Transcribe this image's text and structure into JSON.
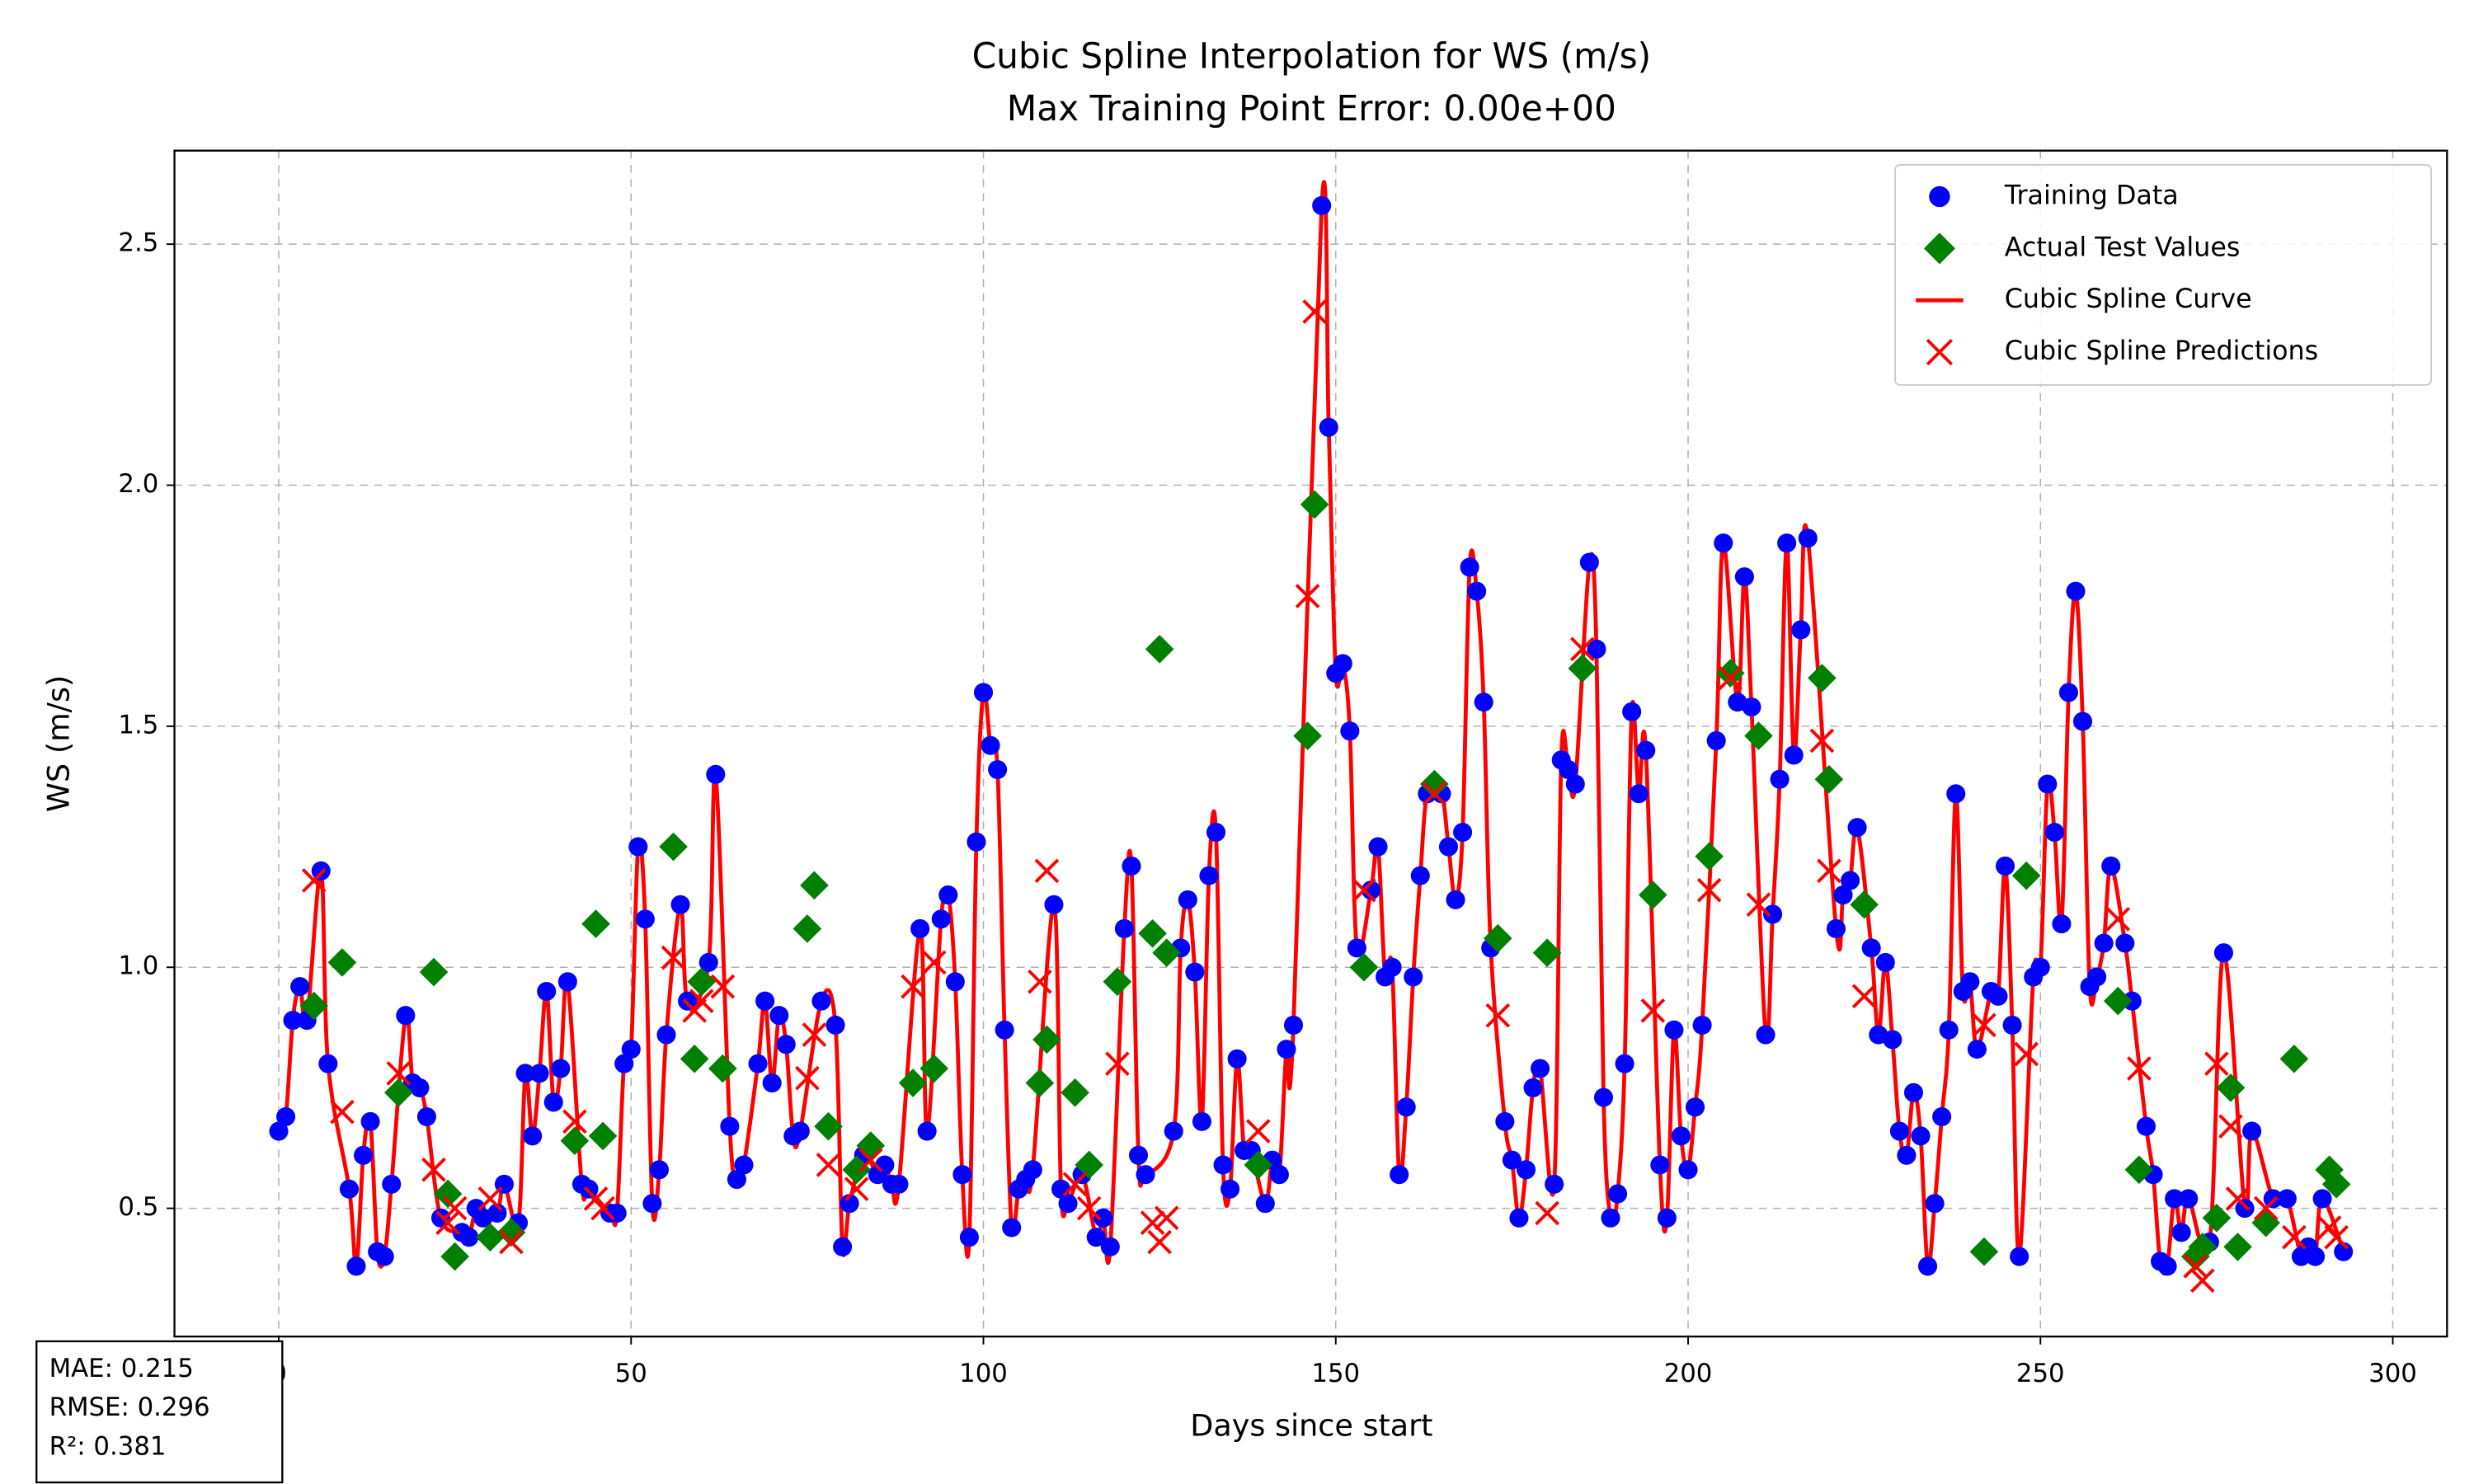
{
  "chart_data": {
    "type": "scatter",
    "title": [
      "Cubic Spline Interpolation for WS (m/s)",
      "Max Training Point Error: 0.00e+00"
    ],
    "xlabel": "Days since start",
    "ylabel": "WS (m/s)",
    "xlim": [
      -14.8,
      307.7
    ],
    "ylim": [
      0.234,
      2.694
    ],
    "xticks": [
      0,
      50,
      100,
      150,
      200,
      250,
      300
    ],
    "yticks": [
      0.5,
      {
        "value": 1.0,
        "label": "1.0"
      },
      1.5,
      {
        "value": 2.0,
        "label": "2.0"
      },
      2.5
    ],
    "grid": true,
    "legend": "upper right",
    "stats": [
      "MAE: 0.215",
      "RMSE: 0.296",
      "R²: 0.381"
    ],
    "series": [
      {
        "name": "Training Data",
        "color": "#0000ff",
        "marker": "circle",
        "x": [
          0,
          1,
          2,
          3,
          4,
          6,
          7,
          10,
          11,
          12,
          13,
          14,
          15,
          16,
          18,
          19,
          20,
          21,
          23,
          26,
          27,
          28,
          29,
          31,
          32,
          34,
          35,
          36,
          37,
          38,
          39,
          40,
          41,
          43,
          44,
          47,
          48,
          49,
          50,
          51,
          52,
          53,
          54,
          55,
          57,
          58,
          61,
          62,
          64,
          65,
          66,
          68,
          69,
          70,
          71,
          72,
          73,
          74,
          77,
          79,
          80,
          81,
          83,
          85,
          86,
          87,
          88,
          91,
          92,
          94,
          95,
          96,
          97,
          98,
          99,
          100,
          101,
          102,
          103,
          104,
          105,
          106,
          107,
          110,
          111,
          112,
          114,
          116,
          117,
          118,
          120,
          121,
          122,
          123,
          127,
          128,
          129,
          130,
          131,
          132,
          133,
          134,
          135,
          136,
          137,
          138,
          140,
          141,
          142,
          143,
          144,
          148,
          149,
          150,
          151,
          152,
          153,
          155,
          156,
          157,
          158,
          159,
          160,
          161,
          162,
          163,
          165,
          166,
          167,
          168,
          169,
          170,
          171,
          172,
          174,
          175,
          176,
          177,
          178,
          179,
          181,
          182,
          183,
          184,
          186,
          187,
          188,
          189,
          190,
          191,
          192,
          193,
          194,
          196,
          197,
          198,
          199,
          200,
          201,
          202,
          204,
          205,
          207,
          208,
          209,
          211,
          212,
          213,
          214,
          215,
          216,
          217,
          221,
          222,
          223,
          224,
          226,
          227,
          228,
          229,
          230,
          231,
          232,
          233,
          234,
          235,
          236,
          237,
          238,
          239,
          240,
          241,
          243,
          244,
          245,
          246,
          247,
          249,
          250,
          251,
          252,
          253,
          254,
          255,
          256,
          257,
          258,
          259,
          260,
          262,
          263,
          265,
          266,
          267,
          268,
          269,
          270,
          271,
          274,
          276,
          279,
          280,
          283,
          285,
          287,
          288,
          289,
          290,
          293
        ],
        "values": [
          0.66,
          0.69,
          0.89,
          0.96,
          0.89,
          1.2,
          0.8,
          0.54,
          0.38,
          0.61,
          0.68,
          0.41,
          0.4,
          0.55,
          0.9,
          0.76,
          0.75,
          0.69,
          0.48,
          0.45,
          0.44,
          0.5,
          0.48,
          0.49,
          0.55,
          0.47,
          0.78,
          0.65,
          0.78,
          0.95,
          0.72,
          0.79,
          0.97,
          0.55,
          0.54,
          0.49,
          0.49,
          0.8,
          0.83,
          1.25,
          1.1,
          0.51,
          0.58,
          0.86,
          1.13,
          0.93,
          1.01,
          1.4,
          0.67,
          0.56,
          0.59,
          0.8,
          0.93,
          0.76,
          0.9,
          0.84,
          0.65,
          0.66,
          0.93,
          0.88,
          0.42,
          0.51,
          0.61,
          0.57,
          0.59,
          0.55,
          0.55,
          1.08,
          0.66,
          1.1,
          1.15,
          0.97,
          0.57,
          0.44,
          1.26,
          1.57,
          1.46,
          1.41,
          0.87,
          0.46,
          0.54,
          0.56,
          0.58,
          1.13,
          0.54,
          0.51,
          0.57,
          0.44,
          0.48,
          0.42,
          1.08,
          1.21,
          0.61,
          0.57,
          0.66,
          1.04,
          1.14,
          0.99,
          0.68,
          1.19,
          1.28,
          0.59,
          0.54,
          0.81,
          0.62,
          0.62,
          0.51,
          0.6,
          0.57,
          0.83,
          0.88,
          2.58,
          2.12,
          1.61,
          1.63,
          1.49,
          1.04,
          1.16,
          1.25,
          0.98,
          1.0,
          0.57,
          0.71,
          0.98,
          1.19,
          1.36,
          1.36,
          1.25,
          1.14,
          1.28,
          1.83,
          1.78,
          1.55,
          1.04,
          0.68,
          0.6,
          0.48,
          0.58,
          0.75,
          0.79,
          0.55,
          1.43,
          1.41,
          1.38,
          1.84,
          1.66,
          0.73,
          0.48,
          0.53,
          0.8,
          1.53,
          1.36,
          1.45,
          0.59,
          0.48,
          0.87,
          0.65,
          0.58,
          0.71,
          0.88,
          1.47,
          1.88,
          1.55,
          1.81,
          1.54,
          0.86,
          1.11,
          1.39,
          1.88,
          1.44,
          1.7,
          1.89,
          1.08,
          1.15,
          1.18,
          1.29,
          1.04,
          0.86,
          1.01,
          0.85,
          0.66,
          0.61,
          0.74,
          0.65,
          0.38,
          0.51,
          0.69,
          0.87,
          1.36,
          0.95,
          0.97,
          0.83,
          0.95,
          0.94,
          1.21,
          0.88,
          0.4,
          0.98,
          1.0,
          1.38,
          1.28,
          1.09,
          1.57,
          1.78,
          1.51,
          0.96,
          0.98,
          1.05,
          1.21,
          1.05,
          0.93,
          0.67,
          0.57,
          0.39,
          0.38,
          0.52,
          0.45,
          0.52,
          0.43,
          1.03,
          0.5,
          0.66,
          0.52,
          0.52,
          0.4,
          0.42,
          0.4,
          0.52,
          0.41
        ]
      },
      {
        "name": "Actual Test Values",
        "color": "#008000",
        "marker": "diamond",
        "x": [
          5,
          9,
          17,
          22,
          24,
          25,
          30,
          33,
          42,
          45,
          46,
          56,
          59,
          60,
          63,
          75,
          76,
          78,
          82,
          84,
          90,
          93,
          108,
          109,
          113,
          115,
          119,
          124,
          125,
          126,
          139,
          146,
          147,
          154,
          164,
          173,
          180,
          185,
          195,
          203,
          206,
          210,
          219,
          220,
          225,
          242,
          248,
          261,
          264,
          272,
          273,
          275,
          277,
          278,
          282,
          286,
          291,
          292
        ],
        "values": [
          0.92,
          1.01,
          0.74,
          0.99,
          0.53,
          0.4,
          0.44,
          0.45,
          0.64,
          1.09,
          0.65,
          1.25,
          0.81,
          0.97,
          0.79,
          1.08,
          1.17,
          0.67,
          0.58,
          0.63,
          0.76,
          0.79,
          0.76,
          0.85,
          0.74,
          0.59,
          0.97,
          1.07,
          1.66,
          1.03,
          0.59,
          1.48,
          1.96,
          1.0,
          1.38,
          1.06,
          1.03,
          1.62,
          1.15,
          1.23,
          1.61,
          1.48,
          1.6,
          1.39,
          1.13,
          0.41,
          1.19,
          0.93,
          0.58,
          0.4,
          0.42,
          0.48,
          0.75,
          0.42,
          0.47,
          0.81,
          0.58,
          0.55
        ]
      },
      {
        "name": "Cubic Spline Curve",
        "color": "#ff0000",
        "marker": "line",
        "through": 0
      },
      {
        "name": "Cubic Spline Predictions",
        "color": "#ff0000",
        "marker": "x",
        "x_of": 1,
        "values": [
          1.18,
          0.7,
          0.78,
          0.58,
          0.47,
          0.5,
          0.52,
          0.43,
          0.68,
          0.52,
          0.5,
          1.02,
          0.91,
          0.93,
          0.96,
          0.77,
          0.86,
          0.59,
          0.54,
          0.6,
          0.96,
          1.01,
          0.97,
          1.2,
          0.55,
          0.5,
          0.8,
          0.47,
          0.43,
          0.48,
          0.66,
          1.77,
          2.36,
          1.16,
          1.36,
          0.9,
          0.49,
          1.66,
          0.91,
          1.16,
          1.6,
          1.13,
          1.47,
          1.2,
          0.94,
          0.88,
          0.82,
          1.1,
          0.79,
          0.38,
          0.35,
          0.8,
          0.67,
          0.52,
          0.5,
          0.44,
          0.46,
          0.44
        ]
      }
    ]
  }
}
